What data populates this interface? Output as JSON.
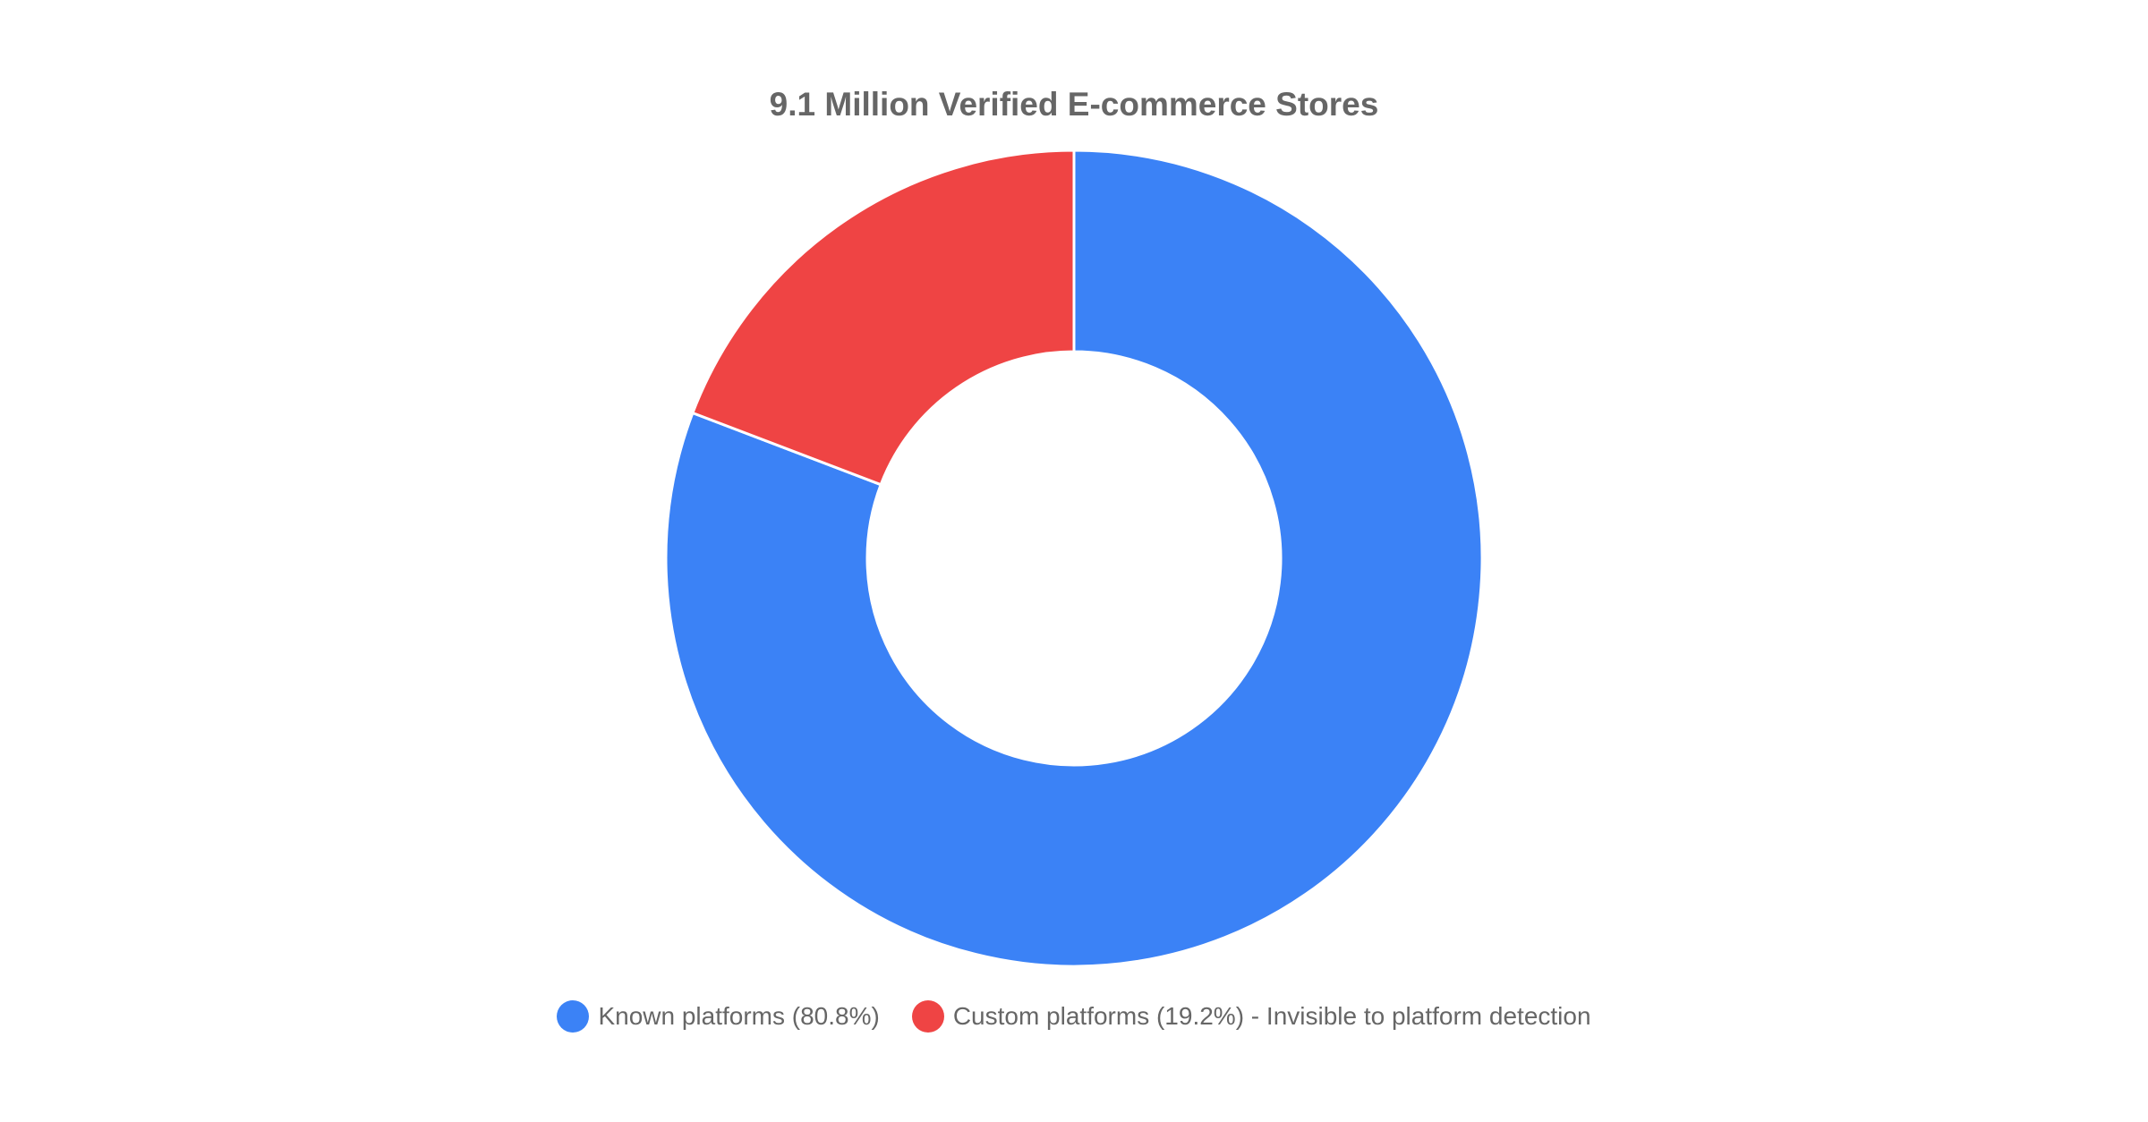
{
  "chart_data": {
    "type": "pie",
    "donut": true,
    "title": "9.1 Million Verified E-commerce Stores",
    "slices": [
      {
        "label": "Known platforms (80.8%)",
        "value": 80.8,
        "color": "#3b82f6"
      },
      {
        "label": "Custom platforms (19.2%) - Invisible to platform detection",
        "value": 19.2,
        "color": "#ef4444"
      }
    ],
    "legend_position": "bottom"
  }
}
